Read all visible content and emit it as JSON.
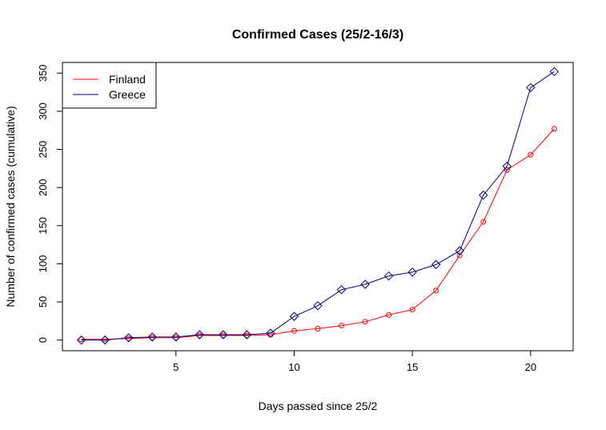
{
  "chart_data": {
    "type": "line",
    "title": "Confirmed Cases (25/2-16/3)",
    "xlabel": "Days passed since 25/2",
    "ylabel": "Number of confirmed cases (cumulative)",
    "xlim": [
      0.2,
      21.8
    ],
    "ylim": [
      -14,
      364
    ],
    "xticks": [
      5,
      10,
      15,
      20
    ],
    "yticks": [
      0,
      50,
      100,
      150,
      200,
      250,
      300,
      350
    ],
    "x": [
      1,
      2,
      3,
      4,
      5,
      6,
      7,
      8,
      9,
      10,
      11,
      12,
      13,
      14,
      15,
      16,
      17,
      18,
      19,
      20,
      21
    ],
    "series": [
      {
        "name": "Finland",
        "color": "#ff0000",
        "marker": "circle",
        "values": [
          1,
          1,
          2,
          3,
          3,
          6,
          6,
          6,
          7,
          12,
          15,
          19,
          24,
          33,
          40,
          65,
          111,
          155,
          223,
          243,
          277
        ]
      },
      {
        "name": "Greece",
        "color": "#000080",
        "marker": "diamond",
        "values": [
          0,
          0,
          3,
          4,
          4,
          7,
          7,
          7,
          9,
          31,
          45,
          66,
          73,
          84,
          89,
          99,
          117,
          190,
          228,
          331,
          352
        ]
      }
    ],
    "legend_position": "top-left",
    "grid": false
  }
}
